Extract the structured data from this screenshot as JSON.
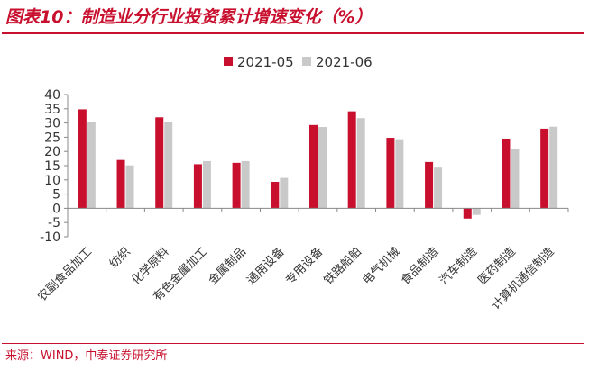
{
  "title": "图表10：制造业分行业投资累计增速变化（%）",
  "source": "来源：WIND，中泰证券研究所",
  "colors": {
    "brand": "#c8102e",
    "series1": "#c8102e",
    "series2": "#c9c9c9"
  },
  "chart_data": {
    "type": "bar",
    "categories": [
      "农副食品加工",
      "纺织",
      "化学原料",
      "有色金属加工",
      "金属制品",
      "通用设备",
      "专用设备",
      "铁路船舶",
      "电气机械",
      "食品制造",
      "汽车制造",
      "医药制造",
      "计算机通信制造"
    ],
    "series": [
      {
        "name": "2021-05",
        "values": [
          34.8,
          17.0,
          32.0,
          15.5,
          16.0,
          9.3,
          29.3,
          34.1,
          24.8,
          16.3,
          -3.6,
          24.5,
          28.0
        ]
      },
      {
        "name": "2021-06",
        "values": [
          30.2,
          15.1,
          30.5,
          16.6,
          16.6,
          10.7,
          28.6,
          31.7,
          24.3,
          14.3,
          -2.3,
          20.7,
          28.7
        ]
      }
    ],
    "ylim": [
      -10,
      40
    ],
    "yticks": [
      "40",
      "35",
      "30",
      "25",
      "20",
      "15",
      "10",
      "5",
      "0",
      "-5",
      "-10"
    ],
    "legend": "top-center",
    "grid": false
  }
}
